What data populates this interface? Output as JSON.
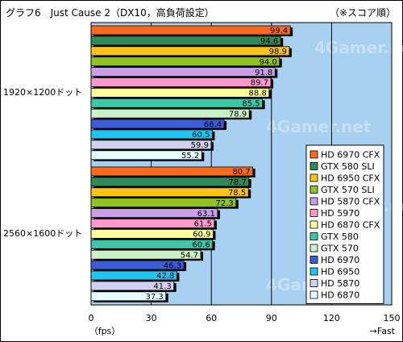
{
  "header": {
    "title": "グラフ6　Just Cause 2（DX10，高負荷設定）",
    "note": "（※スコア順）"
  },
  "chart_data": {
    "type": "bar",
    "orientation": "horizontal",
    "title": "グラフ6　Just Cause 2（DX10，高負荷設定）",
    "xlabel": "（fps）",
    "xlabel_right": "→Fast",
    "xlim": [
      0,
      150
    ],
    "xticks": [
      0,
      30,
      60,
      90,
      120,
      150
    ],
    "grid": true,
    "legend_position": "right",
    "groups": [
      {
        "label": "1920×1200ドット",
        "values": [
          99.4,
          94.6,
          98.9,
          94.0,
          91.8,
          89.7,
          88.8,
          85.5,
          78.9,
          66.4,
          60.5,
          59.9,
          55.2
        ]
      },
      {
        "label": "2560×1600ドット",
        "values": [
          80.7,
          78.7,
          78.5,
          72.3,
          63.1,
          61.5,
          60.9,
          60.6,
          54.7,
          46.3,
          42.8,
          41.3,
          37.3
        ]
      }
    ],
    "series": [
      {
        "name": "HD 6970 CFX",
        "color": "#ff6a1f"
      },
      {
        "name": "GTX 580 SLI",
        "color": "#2e8b57"
      },
      {
        "name": "HD 6950 CFX",
        "color": "#ffc418"
      },
      {
        "name": "GTX 570 SLI",
        "color": "#8fc31f"
      },
      {
        "name": "HD 5870 CFX",
        "color": "#c9a0e8"
      },
      {
        "name": "HD 5970",
        "color": "#ff99cc"
      },
      {
        "name": "HD 6870 CFX",
        "color": "#ffff99"
      },
      {
        "name": "GTX 580",
        "color": "#3cc7a8"
      },
      {
        "name": "GTX 570",
        "color": "#c9f2c9"
      },
      {
        "name": "HD 6970",
        "color": "#3b5bdb"
      },
      {
        "name": "HD 6950",
        "color": "#1ec6f0"
      },
      {
        "name": "HD 5870",
        "color": "#d0d0f0"
      },
      {
        "name": "HD 6870",
        "color": "#e6ffff"
      }
    ],
    "plot_bg": "#a8d0f0",
    "watermark": "4Gamer.net"
  }
}
